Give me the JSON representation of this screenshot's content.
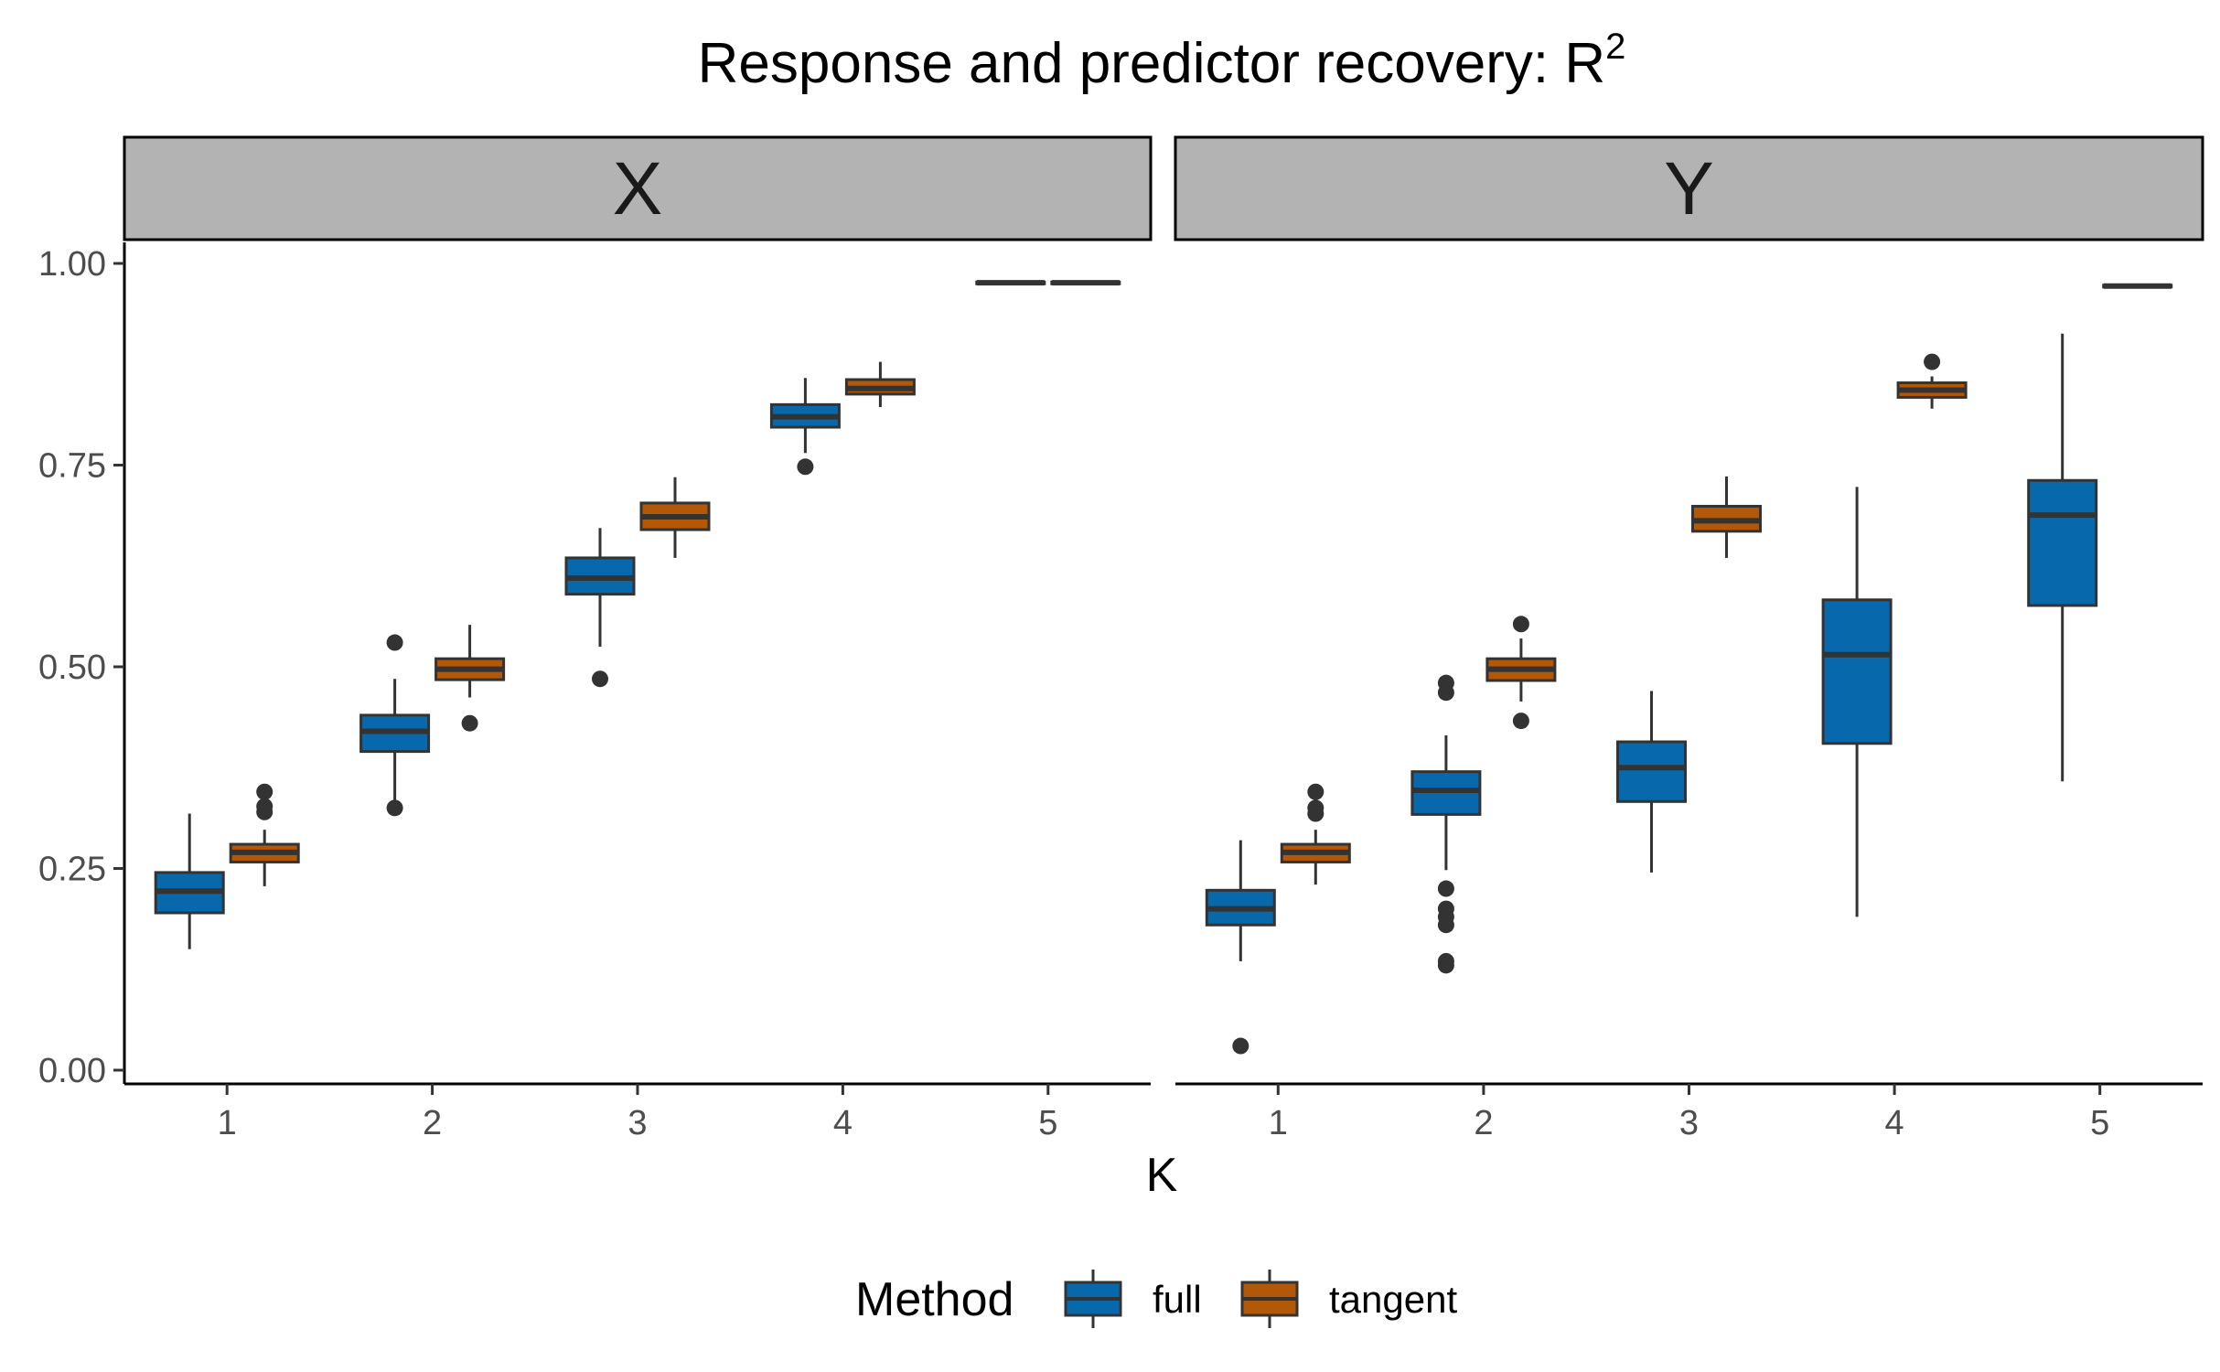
{
  "chart_data": {
    "type": "box",
    "title_main": "Response and predictor recovery: R",
    "title_superscript": "2",
    "xlabel": "K",
    "ylabel": "",
    "ylim": [
      0,
      1.04
    ],
    "y_ticks": [
      "0.00",
      "0.25",
      "0.50",
      "0.75",
      "1.00"
    ],
    "categories": [
      "1",
      "2",
      "3",
      "4",
      "5"
    ],
    "grid": false,
    "legend": {
      "title": "Method",
      "position": "bottom",
      "entries": [
        "full",
        "tangent"
      ]
    },
    "colors": {
      "full": "#0868ac",
      "tangent": "#b35806",
      "outline": "#333333",
      "strip_fill": "#b3b3b3"
    },
    "panels": [
      {
        "name": "X",
        "series": [
          {
            "name": "full",
            "boxes": [
              {
                "k": "1",
                "lower_whisker": 0.15,
                "q1": 0.195,
                "median": 0.222,
                "q3": 0.245,
                "upper_whisker": 0.318,
                "outliers": []
              },
              {
                "k": "2",
                "lower_whisker": 0.33,
                "q1": 0.395,
                "median": 0.42,
                "q3": 0.44,
                "upper_whisker": 0.485,
                "outliers": [
                  0.53,
                  0.325
                ]
              },
              {
                "k": "3",
                "lower_whisker": 0.525,
                "q1": 0.59,
                "median": 0.61,
                "q3": 0.635,
                "upper_whisker": 0.672,
                "outliers": [
                  0.485
                ]
              },
              {
                "k": "4",
                "lower_whisker": 0.765,
                "q1": 0.797,
                "median": 0.81,
                "q3": 0.825,
                "upper_whisker": 0.858,
                "outliers": [
                  0.748
                ]
              },
              {
                "k": "5",
                "lower_whisker": 0.974,
                "q1": 0.975,
                "median": 0.976,
                "q3": 0.977,
                "upper_whisker": 0.978,
                "outliers": []
              }
            ]
          },
          {
            "name": "tangent",
            "boxes": [
              {
                "k": "1",
                "lower_whisker": 0.228,
                "q1": 0.258,
                "median": 0.27,
                "q3": 0.28,
                "upper_whisker": 0.298,
                "outliers": [
                  0.345,
                  0.327,
                  0.32
                ]
              },
              {
                "k": "2",
                "lower_whisker": 0.462,
                "q1": 0.484,
                "median": 0.497,
                "q3": 0.51,
                "upper_whisker": 0.552,
                "outliers": [
                  0.43
                ]
              },
              {
                "k": "3",
                "lower_whisker": 0.635,
                "q1": 0.67,
                "median": 0.686,
                "q3": 0.703,
                "upper_whisker": 0.735,
                "outliers": []
              },
              {
                "k": "4",
                "lower_whisker": 0.822,
                "q1": 0.838,
                "median": 0.845,
                "q3": 0.856,
                "upper_whisker": 0.878,
                "outliers": []
              },
              {
                "k": "5",
                "lower_whisker": 0.974,
                "q1": 0.975,
                "median": 0.976,
                "q3": 0.977,
                "upper_whisker": 0.978,
                "outliers": []
              }
            ]
          }
        ]
      },
      {
        "name": "Y",
        "series": [
          {
            "name": "full",
            "boxes": [
              {
                "k": "1",
                "lower_whisker": 0.135,
                "q1": 0.18,
                "median": 0.2,
                "q3": 0.223,
                "upper_whisker": 0.285,
                "outliers": [
                  0.03
                ]
              },
              {
                "k": "2",
                "lower_whisker": 0.248,
                "q1": 0.317,
                "median": 0.347,
                "q3": 0.37,
                "upper_whisker": 0.415,
                "outliers": [
                  0.48,
                  0.468,
                  0.225,
                  0.2,
                  0.19,
                  0.18,
                  0.135,
                  0.13
                ]
              },
              {
                "k": "3",
                "lower_whisker": 0.245,
                "q1": 0.333,
                "median": 0.375,
                "q3": 0.407,
                "upper_whisker": 0.47,
                "outliers": []
              },
              {
                "k": "4",
                "lower_whisker": 0.19,
                "q1": 0.405,
                "median": 0.515,
                "q3": 0.583,
                "upper_whisker": 0.723,
                "outliers": []
              },
              {
                "k": "5",
                "lower_whisker": 0.358,
                "q1": 0.576,
                "median": 0.688,
                "q3": 0.731,
                "upper_whisker": 0.913,
                "outliers": []
              }
            ]
          },
          {
            "name": "tangent",
            "boxes": [
              {
                "k": "1",
                "lower_whisker": 0.23,
                "q1": 0.258,
                "median": 0.27,
                "q3": 0.28,
                "upper_whisker": 0.298,
                "outliers": [
                  0.345,
                  0.325,
                  0.318
                ]
              },
              {
                "k": "2",
                "lower_whisker": 0.457,
                "q1": 0.483,
                "median": 0.497,
                "q3": 0.51,
                "upper_whisker": 0.535,
                "outliers": [
                  0.553,
                  0.433
                ]
              },
              {
                "k": "3",
                "lower_whisker": 0.635,
                "q1": 0.668,
                "median": 0.681,
                "q3": 0.699,
                "upper_whisker": 0.736,
                "outliers": []
              },
              {
                "k": "4",
                "lower_whisker": 0.82,
                "q1": 0.834,
                "median": 0.843,
                "q3": 0.852,
                "upper_whisker": 0.86,
                "outliers": [
                  0.878
                ]
              },
              {
                "k": "5",
                "lower_whisker": 0.97,
                "q1": 0.971,
                "median": 0.972,
                "q3": 0.973,
                "upper_whisker": 0.974,
                "outliers": []
              }
            ]
          }
        ]
      }
    ]
  }
}
